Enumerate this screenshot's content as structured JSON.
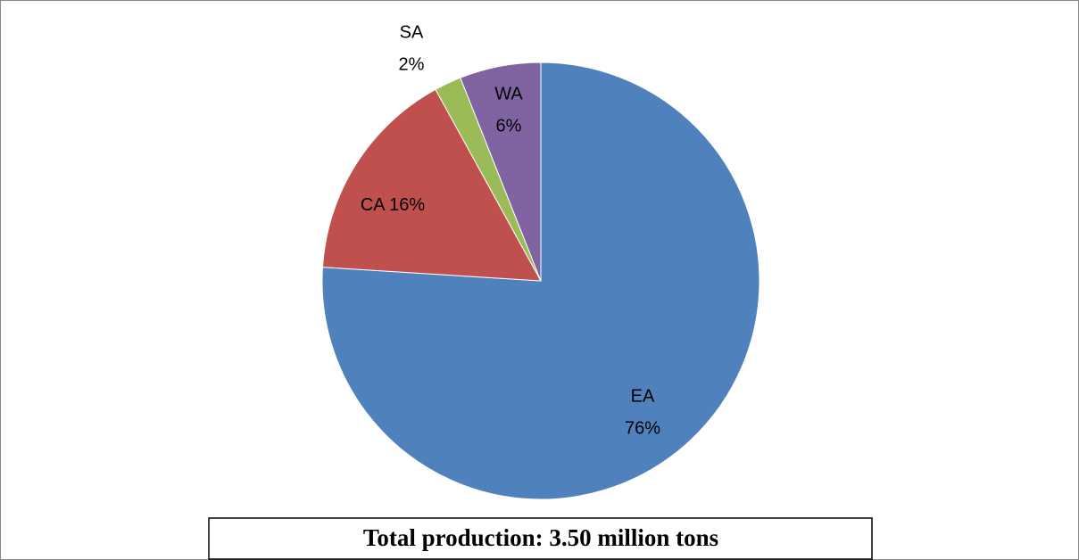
{
  "chart_data": {
    "type": "pie",
    "categories": [
      "EA",
      "CA",
      "SA",
      "WA"
    ],
    "values": [
      76,
      16,
      2,
      6
    ],
    "value_labels": [
      "76%",
      "16%",
      "2%",
      "6%"
    ],
    "colors": [
      "#4f81bd",
      "#c0504d",
      "#9bbb59",
      "#8064a2"
    ],
    "annotation": "Total production: 3.50 million tons"
  }
}
